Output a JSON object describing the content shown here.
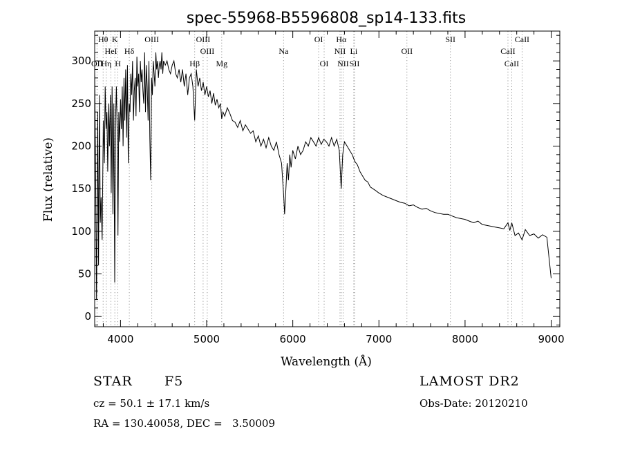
{
  "header": {
    "title": "spec-55968-B5596808_sp14-133.fits"
  },
  "info": {
    "class_label": "STAR",
    "subclass_label": "F5",
    "cz": "cz = 50.1 ± 17.1 km/s",
    "coords": "RA = 130.40058, DEC =   3.50009",
    "survey": "LAMOST DR2",
    "obs_date": "Obs-Date: 20120210"
  },
  "chart_data": {
    "type": "line",
    "xlabel": "Wavelength (Å)",
    "ylabel": "Flux (relative)",
    "xlim": [
      3700,
      9100
    ],
    "ylim": [
      -12,
      335
    ],
    "xticks": [
      4000,
      5000,
      6000,
      7000,
      8000,
      9000
    ],
    "yticks": [
      0,
      50,
      100,
      150,
      200,
      250,
      300
    ],
    "x_minor_step": 200,
    "y_minor_step": 10,
    "series": [
      {
        "x": [
          3700,
          3712,
          3722,
          3735,
          3745,
          3755,
          3765,
          3775,
          3787,
          3800,
          3812,
          3822,
          3832,
          3842,
          3852,
          3862,
          3872,
          3882,
          3892,
          3902,
          3912,
          3922,
          3933,
          3942,
          3952,
          3962,
          3970,
          3980,
          3990,
          4000,
          4010,
          4020,
          4030,
          4040,
          4050,
          4060,
          4070,
          4080,
          4090,
          4101,
          4110,
          4120,
          4130,
          4140,
          4150,
          4160,
          4170,
          4180,
          4190,
          4200,
          4210,
          4220,
          4230,
          4240,
          4250,
          4260,
          4270,
          4280,
          4290,
          4300,
          4310,
          4320,
          4330,
          4340,
          4350,
          4360,
          4370,
          4380,
          4390,
          4400,
          4410,
          4420,
          4430,
          4440,
          4450,
          4460,
          4470,
          4480,
          4490,
          4500,
          4520,
          4540,
          4560,
          4580,
          4600,
          4620,
          4640,
          4660,
          4680,
          4700,
          4720,
          4740,
          4760,
          4780,
          4800,
          4820,
          4840,
          4861,
          4880,
          4900,
          4920,
          4940,
          4960,
          4980,
          5000,
          5020,
          5040,
          5060,
          5080,
          5100,
          5120,
          5140,
          5160,
          5175,
          5190,
          5210,
          5240,
          5270,
          5300,
          5330,
          5360,
          5390,
          5420,
          5450,
          5480,
          5510,
          5540,
          5570,
          5600,
          5630,
          5660,
          5690,
          5720,
          5750,
          5780,
          5810,
          5840,
          5870,
          5895,
          5905,
          5920,
          5935,
          5950,
          5965,
          5980,
          6000,
          6030,
          6060,
          6090,
          6120,
          6150,
          6180,
          6210,
          6240,
          6270,
          6300,
          6330,
          6360,
          6390,
          6420,
          6450,
          6480,
          6510,
          6540,
          6562,
          6580,
          6600,
          6630,
          6660,
          6690,
          6720,
          6750,
          6780,
          6810,
          6840,
          6870,
          6900,
          6930,
          6960,
          7000,
          7050,
          7100,
          7150,
          7200,
          7250,
          7300,
          7350,
          7400,
          7450,
          7500,
          7550,
          7600,
          7650,
          7700,
          7750,
          7800,
          7850,
          7900,
          7950,
          8000,
          8050,
          8100,
          8150,
          8200,
          8250,
          8300,
          8350,
          8400,
          8450,
          8498,
          8520,
          8542,
          8580,
          8620,
          8662,
          8700,
          8750,
          8800,
          8850,
          8900,
          8950,
          9000
        ],
        "values": [
          290,
          150,
          20,
          240,
          60,
          260,
          110,
          140,
          90,
          230,
          180,
          270,
          220,
          240,
          170,
          250,
          200,
          260,
          145,
          270,
          120,
          250,
          40,
          230,
          270,
          210,
          95,
          240,
          205,
          255,
          220,
          270,
          200,
          280,
          230,
          290,
          210,
          295,
          180,
          250,
          240,
          285,
          260,
          300,
          230,
          265,
          280,
          235,
          305,
          270,
          285,
          240,
          300,
          275,
          290,
          265,
          250,
          310,
          240,
          295,
          270,
          230,
          300,
          210,
          160,
          280,
          260,
          300,
          285,
          270,
          310,
          290,
          300,
          280,
          295,
          300,
          290,
          310,
          285,
          300,
          295,
          300,
          290,
          285,
          295,
          300,
          285,
          280,
          290,
          275,
          290,
          270,
          285,
          260,
          280,
          285,
          270,
          230,
          290,
          270,
          280,
          265,
          275,
          260,
          270,
          258,
          265,
          250,
          262,
          248,
          255,
          245,
          250,
          232,
          240,
          235,
          245,
          238,
          230,
          228,
          222,
          230,
          218,
          225,
          220,
          215,
          218,
          205,
          212,
          200,
          208,
          198,
          210,
          200,
          195,
          205,
          190,
          180,
          140,
          120,
          150,
          180,
          160,
          190,
          175,
          195,
          185,
          200,
          190,
          195,
          205,
          200,
          210,
          205,
          200,
          210,
          202,
          208,
          205,
          200,
          210,
          200,
          208,
          195,
          150,
          190,
          205,
          200,
          195,
          190,
          182,
          178,
          170,
          165,
          160,
          158,
          152,
          150,
          148,
          145,
          142,
          140,
          138,
          136,
          134,
          133,
          130,
          131,
          128,
          126,
          127,
          124,
          122,
          121,
          120,
          120,
          118,
          116,
          115,
          114,
          112,
          110,
          112,
          108,
          107,
          106,
          105,
          104,
          103,
          110,
          101,
          110,
          95,
          98,
          90,
          102,
          95,
          97,
          92,
          96,
          93,
          45
        ]
      }
    ],
    "line_markers": [
      {
        "label": "Hθ",
        "x": 3798,
        "row": 0
      },
      {
        "label": "K",
        "x": 3934,
        "row": 0
      },
      {
        "label": "OIII",
        "x": 4363,
        "row": 0
      },
      {
        "label": "OIII",
        "x": 4959,
        "row": 0
      },
      {
        "label": "OI",
        "x": 6300,
        "row": 0
      },
      {
        "label": "Hα",
        "x": 6563,
        "row": 0
      },
      {
        "label": "SII",
        "x": 7830,
        "row": 0
      },
      {
        "label": "CaII",
        "x": 8662,
        "row": 0
      },
      {
        "label": "HeI",
        "x": 3889,
        "row": 1
      },
      {
        "label": "Hδ",
        "x": 4102,
        "row": 1
      },
      {
        "label": "OIII",
        "x": 5007,
        "row": 1
      },
      {
        "label": "Na",
        "x": 5893,
        "row": 1
      },
      {
        "label": "NII",
        "x": 6548,
        "row": 1
      },
      {
        "label": "Li",
        "x": 6708,
        "row": 1
      },
      {
        "label": "OII",
        "x": 7325,
        "row": 1
      },
      {
        "label": "CaII",
        "x": 8498,
        "row": 1
      },
      {
        "label": "OII",
        "x": 3727,
        "row": 2
      },
      {
        "label": "Hη",
        "x": 3835,
        "row": 2
      },
      {
        "label": "H",
        "x": 3969,
        "row": 2
      },
      {
        "label": "Hβ",
        "x": 4861,
        "row": 2
      },
      {
        "label": "Mg",
        "x": 5175,
        "row": 2
      },
      {
        "label": "OI",
        "x": 6364,
        "row": 2
      },
      {
        "label": "NII",
        "x": 6584,
        "row": 2
      },
      {
        "label": "SII",
        "x": 6717,
        "row": 2
      },
      {
        "label": "CaII",
        "x": 8542,
        "row": 2
      }
    ],
    "line_positions": [
      3727,
      3798,
      3835,
      3889,
      3934,
      3969,
      4102,
      4363,
      4861,
      4959,
      5007,
      5175,
      5893,
      6300,
      6364,
      6548,
      6563,
      6584,
      6708,
      6717,
      7325,
      7830,
      8498,
      8542,
      8662
    ]
  }
}
